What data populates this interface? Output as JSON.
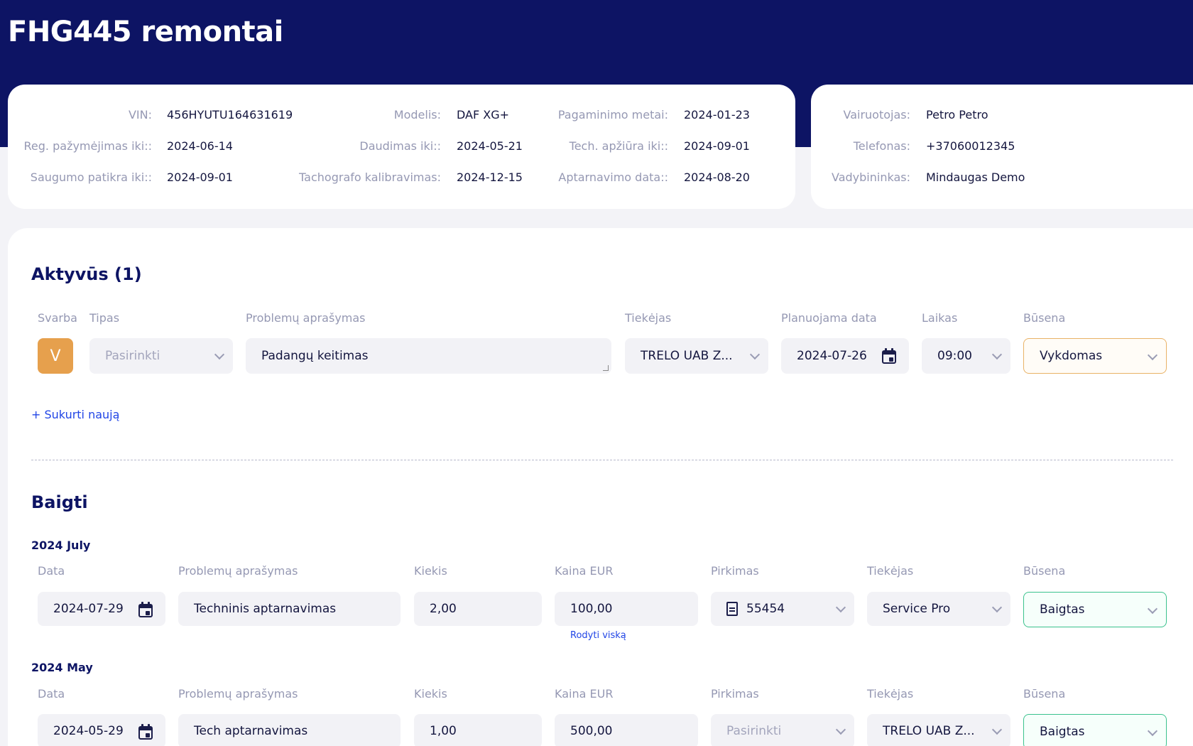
{
  "page_title": "FHG445 remontai",
  "vehicle_info": {
    "vin_label": "VIN:",
    "vin": "456HYUTU164631619",
    "model_label": "Modelis:",
    "model": "DAF XG+",
    "made_label": "Pagaminimo metai:",
    "made": "2024-01-23",
    "reg_label": "Reg. pažymėjimas iki::",
    "reg": "2024-06-14",
    "insurance_label": "Daudimas iki::",
    "insurance": "2024-05-21",
    "tech_label": "Tech. apžiūra iki::",
    "tech": "2024-09-01",
    "safety_label": "Saugumo patikra iki::",
    "safety": "2024-09-01",
    "tacho_label": "Tachografo kalibravimas:",
    "tacho": "2024-12-15",
    "service_label": "Aptarnavimo data::",
    "service": "2024-08-20"
  },
  "driver_info": {
    "driver_label": "Vairuotojas:",
    "driver": "Petro Petro",
    "phone_label": "Telefonas:",
    "phone": "+37060012345",
    "manager_label": "Vadybininkas:",
    "manager": "Mindaugas Demo"
  },
  "active": {
    "title": "Aktyvūs (1)",
    "columns": {
      "priority": "Svarba",
      "type": "Tipas",
      "description": "Problemų aprašymas",
      "supplier": "Tiekėjas",
      "planned_date": "Planuojama data",
      "time": "Laikas",
      "status": "Būsena"
    },
    "row": {
      "priority": "V",
      "type_placeholder": "Pasirinkti",
      "description": "Padangų keitimas",
      "supplier": "TRELO UAB Z...",
      "planned_date": "2024-07-26",
      "time": "09:00",
      "status": "Vykdomas"
    },
    "create_link": "+ Sukurti naują"
  },
  "completed": {
    "title": "Baigti",
    "columns": {
      "date": "Data",
      "description": "Problemų aprašymas",
      "quantity": "Kiekis",
      "price": "Kaina EUR",
      "purchase": "Pirkimas",
      "supplier": "Tiekėjas",
      "status": "Būsena"
    },
    "groups": [
      {
        "month": "2024 July",
        "row": {
          "date": "2024-07-29",
          "description": "Techninis aptarnavimas",
          "quantity": "2,00",
          "price": "100,00",
          "purchase": "55454",
          "supplier": "Service Pro",
          "status": "Baigtas"
        },
        "show_all_link": "Rodyti viską"
      },
      {
        "month": "2024 May",
        "row": {
          "date": "2024-05-29",
          "description": "Tech aptarnavimas",
          "quantity": "1,00",
          "price": "500,00",
          "purchase_placeholder": "Pasirinkti",
          "supplier": "TRELO UAB Z...",
          "status": "Baigtas"
        }
      }
    ]
  }
}
